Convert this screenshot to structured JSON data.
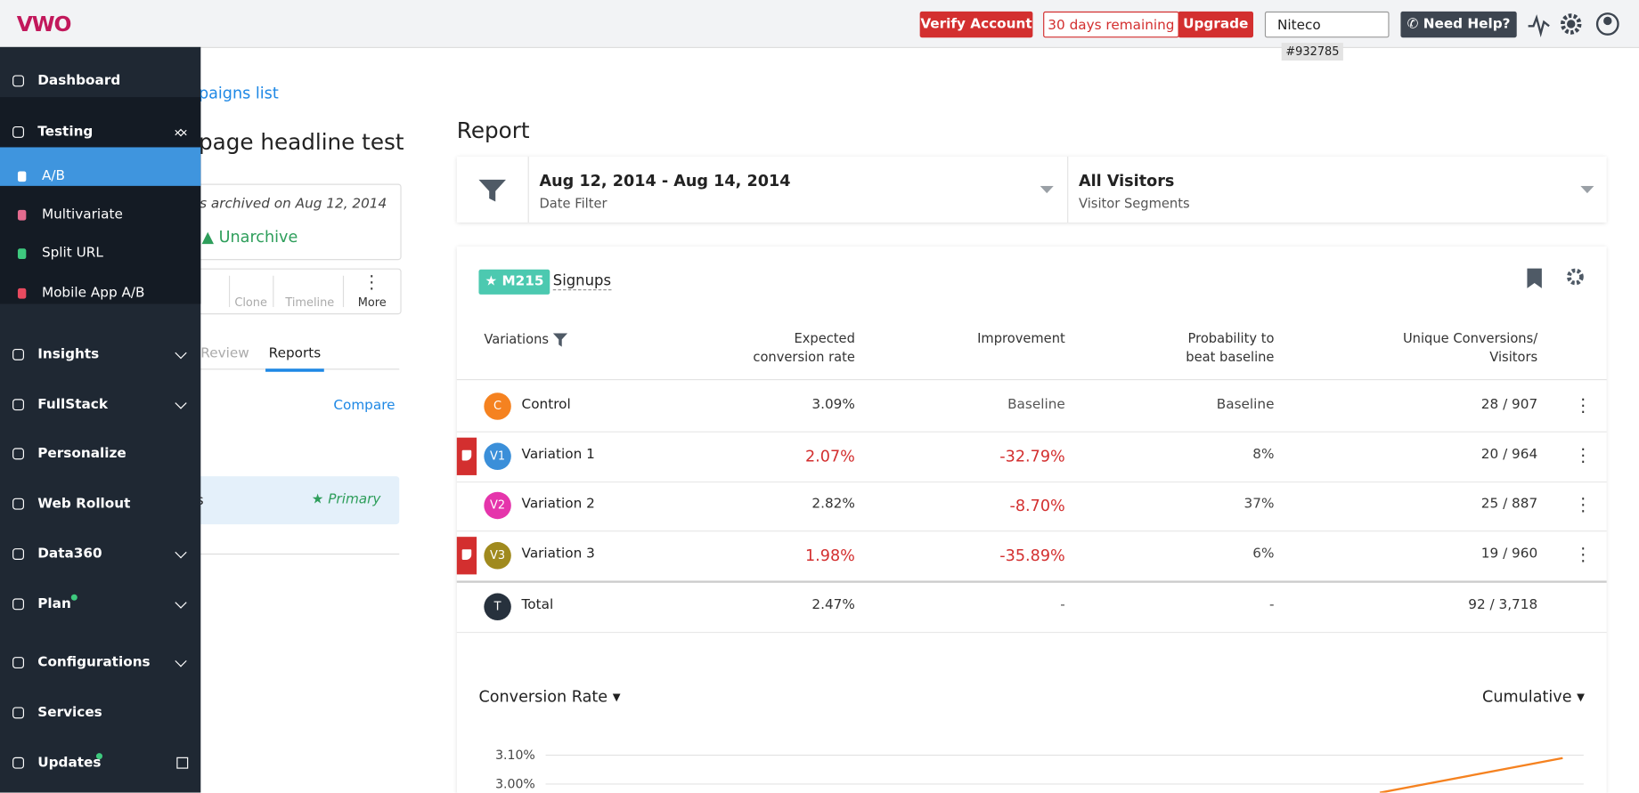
{
  "topbar": {
    "logo": "VWO",
    "verify": "Verify Account",
    "remaining": "30 days remaining",
    "upgrade": "Upgrade",
    "account_name": "Niteco",
    "account_id": "#932785",
    "help": "Need Help?"
  },
  "sidebar": {
    "items": [
      {
        "label": "Dashboard"
      },
      {
        "label": "Testing",
        "children": [
          "A/B",
          "Multivariate",
          "Split URL",
          "Mobile App A/B"
        ]
      },
      {
        "label": "Insights"
      },
      {
        "label": "FullStack"
      },
      {
        "label": "Personalize"
      },
      {
        "label": "Web Rollout"
      },
      {
        "label": "Data360"
      },
      {
        "label": "Plan"
      },
      {
        "label": "Configurations"
      },
      {
        "label": "Services"
      },
      {
        "label": "Updates"
      }
    ]
  },
  "campaign": {
    "back_link": "paigns list",
    "title": "page headline test",
    "archived_note": "s archived on Aug 12, 2014",
    "unarchive": "Unarchive",
    "toolbar": [
      "Clone",
      "Timeline",
      "More"
    ],
    "tabs": [
      "Review",
      "Reports"
    ],
    "compare": "Compare",
    "goal_fragment": "s",
    "primary": "Primary"
  },
  "report": {
    "title": "Report",
    "date_range": "Aug 12, 2014 - Aug 14, 2014",
    "date_filter": "Date Filter",
    "segment": "All Visitors",
    "segment_label": "Visitor Segments",
    "goal_badge": "M215",
    "goal_name": "Signups",
    "columns": [
      "Variations",
      "Expected conversion rate",
      "Improvement",
      "Probability to beat baseline",
      "Unique Conversions/ Visitors"
    ],
    "rows": [
      {
        "initial": "C",
        "name": "Control",
        "rate": "3.09%",
        "improvement": "Baseline",
        "probability": "Baseline",
        "conversions": "28 / 907",
        "avatar_color": "#f58220",
        "flagged": false,
        "rate_color": "#333",
        "improvement_color": "#555"
      },
      {
        "initial": "V1",
        "name": "Variation 1",
        "rate": "2.07%",
        "improvement": "-32.79%",
        "probability": "8%",
        "conversions": "20 / 964",
        "avatar_color": "#3b8fd9",
        "flagged": true,
        "rate_color": "#d32f2f",
        "improvement_color": "#d32f2f"
      },
      {
        "initial": "V2",
        "name": "Variation 2",
        "rate": "2.82%",
        "improvement": "-8.70%",
        "probability": "37%",
        "conversions": "25 / 887",
        "avatar_color": "#e535ab",
        "flagged": false,
        "rate_color": "#333",
        "improvement_color": "#d32f2f"
      },
      {
        "initial": "V3",
        "name": "Variation 3",
        "rate": "1.98%",
        "improvement": "-35.89%",
        "probability": "6%",
        "conversions": "19 / 960",
        "avatar_color": "#a08a1e",
        "flagged": true,
        "rate_color": "#d32f2f",
        "improvement_color": "#d32f2f"
      }
    ],
    "total": {
      "initial": "T",
      "name": "Total",
      "rate": "2.47%",
      "improvement": "-",
      "probability": "-",
      "conversions": "92 / 3,718",
      "avatar_color": "#27313d"
    },
    "chart_metric": "Conversion Rate",
    "chart_mode": "Cumulative"
  },
  "chart_data": {
    "type": "line",
    "ylim": [
      2.97,
      3.14
    ],
    "yticks": [
      {
        "value": 3.1,
        "label": "3.10%"
      },
      {
        "value": 3.0,
        "label": "3.00%"
      }
    ],
    "grid": true,
    "series": [
      {
        "color": "#f58220",
        "values": [
          2.97,
          3.09
        ]
      }
    ]
  }
}
